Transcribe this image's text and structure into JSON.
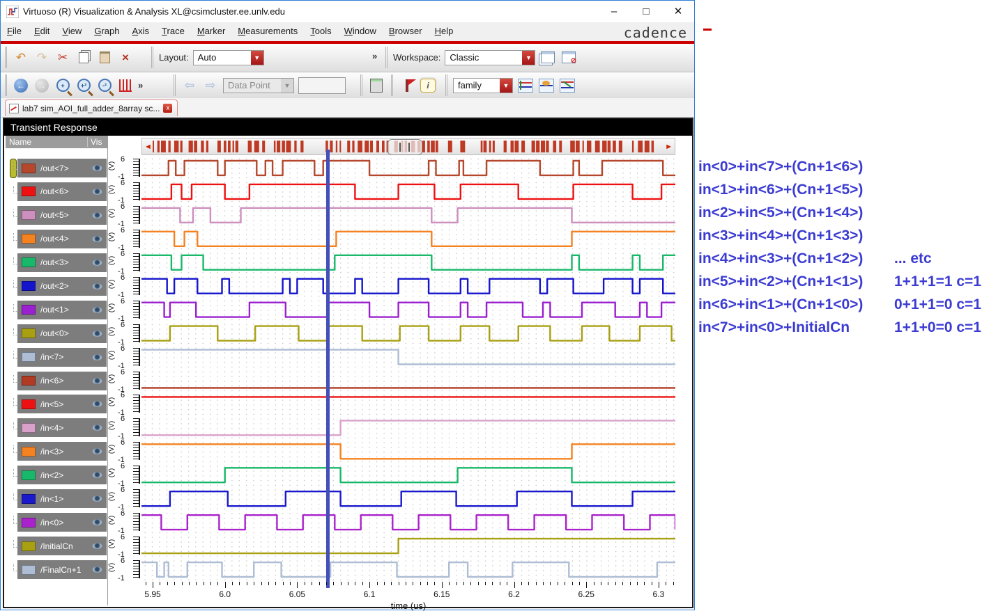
{
  "window": {
    "title": "Virtuoso (R) Visualization & Analysis XL@csimcluster.ee.unlv.edu",
    "controls": {
      "minimize": "–",
      "maximize": "□",
      "close": "✕"
    }
  },
  "menu": {
    "items": [
      "File",
      "Edit",
      "View",
      "Graph",
      "Axis",
      "Trace",
      "Marker",
      "Measurements",
      "Tools",
      "Window",
      "Browser",
      "Help"
    ],
    "brand": "cadence"
  },
  "toolbar1": {
    "layout_label": "Layout:",
    "layout_value": "Auto",
    "overflow": "»",
    "workspace_label": "Workspace:",
    "workspace_value": "Classic",
    "icons": [
      "undo-icon",
      "redo-icon",
      "cut-icon",
      "copy-icon",
      "paste-icon",
      "delete-icon",
      "new-workspace-icon",
      "delete-workspace-icon"
    ]
  },
  "toolbar2": {
    "datapoint_value": "Data Point",
    "search_value": "",
    "family_value": "family",
    "overflow": "»",
    "icons": [
      "back-icon",
      "forward-icon",
      "zoom-fit-icon",
      "zoom-in-icon",
      "zoom-out-icon",
      "zoom-x-icon",
      "prev-point-icon",
      "next-point-icon",
      "calculator-icon",
      "flag-icon",
      "label-icon",
      "swap-sweep-icon",
      "refresh-plot-icon",
      "exchange-plot-icon"
    ]
  },
  "tab": {
    "label": "lab7 sim_AOI_full_adder_8array sc...",
    "close": "x"
  },
  "graph": {
    "header": "Transient Response",
    "columns": {
      "name": "Name",
      "vis": "Vis"
    }
  },
  "axis": {
    "label": "time (us)",
    "tick_values": [
      5.95,
      6.0,
      6.05,
      6.1,
      6.15,
      6.2,
      6.25,
      6.3
    ],
    "tick_labels": [
      "5.95",
      "6.0",
      "6.05",
      "6.1",
      "6.15",
      "6.2",
      "6.25",
      "6.3"
    ],
    "y_top": "6",
    "y_bottom": "-1",
    "y_unit": "(V)",
    "t_start": 5.9423,
    "t_end": 6.3116
  },
  "cursor": {
    "time_us": 6.071,
    "color": "#4350b8"
  },
  "annotations": {
    "color": "#3b3bd2",
    "lines": [
      {
        "formula": "in<0>+in<7>+(Cn+1<6>)",
        "note": ""
      },
      {
        "formula": "in<1>+in<6>+(Cn+1<5>)",
        "note": ""
      },
      {
        "formula": "in<2>+in<5>+(Cn+1<4>)",
        "note": ""
      },
      {
        "formula": "in<3>+in<4>+(Cn+1<3>)",
        "note": ""
      },
      {
        "formula": "in<4>+in<3>+(Cn+1<2>)",
        "note": "... etc"
      },
      {
        "formula": "in<5>+in<2>+(Cn+1<1>)",
        "note": "1+1+1=1 c=1"
      },
      {
        "formula": "in<6>+in<1>+(Cn+1<0>)",
        "note": "0+1+1=0 c=1"
      },
      {
        "formula": "in<7>+in<0>+InitialCn",
        "note": "1+1+0=0 c=1"
      }
    ]
  },
  "chart_data": {
    "type": "digital-waveform",
    "title": "Transient Response",
    "xlabel": "time (us)",
    "x_range": [
      5.9423,
      6.3116
    ],
    "y_per_lane": {
      "high_v": 5,
      "low_v": 0,
      "axis_top": 6,
      "axis_bottom": -1,
      "unit": "V"
    },
    "signals": [
      {
        "name": "/out<7>",
        "color": "#b5472c",
        "start_level": 0,
        "edges": [
          5.961,
          5.966,
          5.972,
          5.995,
          6.0,
          6.022,
          6.028,
          6.033,
          6.04,
          6.062,
          6.068,
          6.1,
          6.141,
          6.146,
          6.162,
          6.165,
          6.181,
          6.218,
          6.241,
          6.245,
          6.261,
          6.303
        ]
      },
      {
        "name": "/out<6>",
        "color": "#ee1111",
        "start_level": 0,
        "edges": [
          5.963,
          5.97,
          5.977,
          6.0,
          6.017,
          6.09,
          6.12,
          6.145,
          6.163,
          6.203,
          6.241,
          6.282,
          6.302
        ]
      },
      {
        "name": "/out<5>",
        "color": "#cc8fbe",
        "start_level": 1,
        "edges": [
          5.969,
          5.978,
          5.99,
          6.011,
          6.143,
          6.161,
          6.24
        ]
      },
      {
        "name": "/out<4>",
        "color": "#f58220",
        "start_level": 1,
        "edges": [
          5.965,
          5.972,
          5.981,
          6.077,
          6.143,
          6.24
        ]
      },
      {
        "name": "/out<3>",
        "color": "#18b86a",
        "start_level": 1,
        "edges": [
          5.963,
          5.97,
          5.985,
          6.076,
          6.143,
          6.24,
          6.245,
          6.282,
          6.287,
          6.303
        ]
      },
      {
        "name": "/out<2>",
        "color": "#1414cc",
        "start_level": 1,
        "edges": [
          5.96,
          5.965,
          5.981,
          5.998,
          6.003,
          6.04,
          6.045,
          6.05,
          6.068,
          6.09,
          6.095,
          6.12,
          6.141,
          6.163,
          6.168,
          6.183,
          6.218,
          6.223,
          6.241,
          6.262,
          6.282,
          6.287,
          6.303
        ]
      },
      {
        "name": "/out<1>",
        "color": "#9a20d0",
        "start_level": 1,
        "edges": [
          5.958,
          5.962,
          5.98,
          6.017,
          6.042,
          6.071,
          6.1,
          6.12,
          6.141,
          6.163,
          6.168,
          6.181,
          6.206,
          6.22,
          6.225,
          6.247,
          6.27,
          6.287,
          6.292,
          6.302
        ]
      },
      {
        "name": "/out<0>",
        "color": "#a8a010",
        "start_level": 0,
        "edges": [
          5.962,
          5.995,
          6.021,
          6.051,
          6.071,
          6.095,
          6.121,
          6.141,
          6.163,
          6.183,
          6.203,
          6.225,
          6.247,
          6.266,
          6.287,
          6.309
        ]
      },
      {
        "name": "/in<7>",
        "color": "#aebdd4",
        "start_level": 1,
        "edges": [
          6.12
        ]
      },
      {
        "name": "/in<6>",
        "color": "#b03a22",
        "start_level": 0,
        "edges": []
      },
      {
        "name": "/in<5>",
        "color": "#ee1111",
        "start_level": 1,
        "edges": []
      },
      {
        "name": "/in<4>",
        "color": "#d9a0cc",
        "start_level": 0,
        "edges": [
          6.08
        ]
      },
      {
        "name": "/in<3>",
        "color": "#f58220",
        "start_level": 1,
        "edges": [
          6.08,
          6.24
        ]
      },
      {
        "name": "/in<2>",
        "color": "#18b86a",
        "start_level": 0,
        "edges": [
          6.0,
          6.08,
          6.161,
          6.24
        ]
      },
      {
        "name": "/in<1>",
        "color": "#1a1acc",
        "start_level": 0,
        "edges": [
          5.962,
          6.002,
          6.042,
          6.08,
          6.122,
          6.16,
          6.202,
          6.24,
          6.282
        ]
      },
      {
        "name": "/in<0>",
        "color": "#aa22cc",
        "start_level": 1,
        "edges": [
          5.956,
          5.974,
          5.996,
          6.014,
          6.036,
          6.054,
          6.076,
          6.094,
          6.116,
          6.134,
          6.156,
          6.174,
          6.196,
          6.214,
          6.236,
          6.254,
          6.276,
          6.294,
          6.316
        ]
      },
      {
        "name": "/InitialCn",
        "color": "#a8a010",
        "start_level": 0,
        "edges": [
          6.12
        ]
      },
      {
        "name": "/FinalCn+1",
        "color": "#aebdd4",
        "start_level": 1,
        "edges": [
          5.953,
          5.958,
          5.961,
          5.974,
          5.998,
          6.02,
          6.039,
          6.073,
          6.119,
          6.155,
          6.168,
          6.199,
          6.238,
          6.299
        ]
      }
    ]
  }
}
